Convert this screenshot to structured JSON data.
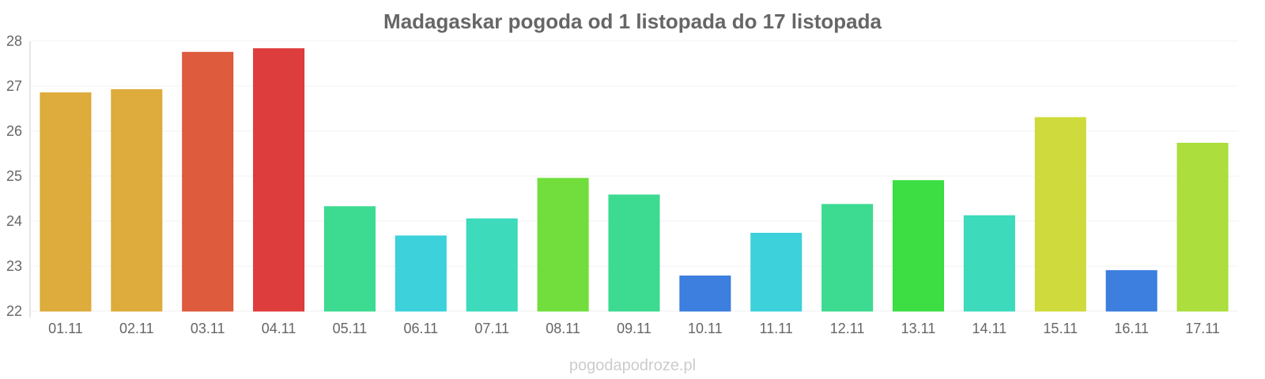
{
  "chart_data": {
    "type": "bar",
    "title": "Madagaskar pogoda od 1 listopada do 17 listopada",
    "xlabel": "",
    "ylabel": "",
    "categories": [
      "01.11",
      "02.11",
      "03.11",
      "04.11",
      "05.11",
      "06.11",
      "07.11",
      "08.11",
      "09.11",
      "10.11",
      "11.11",
      "12.11",
      "13.11",
      "14.11",
      "15.11",
      "16.11",
      "17.11"
    ],
    "values": [
      26.85,
      26.92,
      27.75,
      27.83,
      24.32,
      23.67,
      24.05,
      24.95,
      24.58,
      22.78,
      23.73,
      24.37,
      24.9,
      24.12,
      26.3,
      22.9,
      25.73
    ],
    "colors": [
      "#dba832",
      "#dba832",
      "#dc5233",
      "#dc3333",
      "#33d98b",
      "#33cfd9",
      "#33d9b8",
      "#6adc33",
      "#33d98b",
      "#3378dc",
      "#33cfd9",
      "#33d98b",
      "#33dc3a",
      "#33d9b8",
      "#ccd933",
      "#3378dc",
      "#a8dc33"
    ],
    "ylim": [
      22,
      28
    ],
    "yticks": [
      22,
      23,
      24,
      25,
      26,
      27,
      28
    ],
    "grid": true,
    "legend": "none"
  },
  "watermark": "pogodapodroze.pl"
}
